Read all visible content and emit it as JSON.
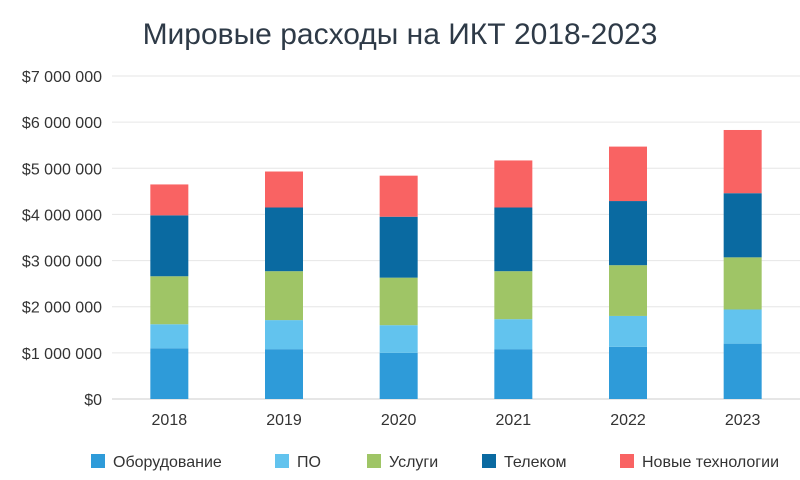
{
  "chart_data": {
    "type": "bar",
    "stacked": true,
    "title": "Мировые расходы на ИКТ 2018-2023",
    "xlabel": "",
    "ylabel": "",
    "categories": [
      "2018",
      "2019",
      "2020",
      "2021",
      "2022",
      "2023"
    ],
    "ylim": [
      0,
      7000000
    ],
    "yticks": [
      0,
      1000000,
      2000000,
      3000000,
      4000000,
      5000000,
      6000000,
      7000000
    ],
    "ytick_labels": [
      "$0",
      "$1 000 000",
      "$2 000 000",
      "$3 000 000",
      "$4 000 000",
      "$5 000 000",
      "$6 000 000",
      "$7 000 000"
    ],
    "grid": true,
    "legend_position": "bottom",
    "series": [
      {
        "name": "Оборудование",
        "color": "#2e9bd9",
        "values": [
          1100000,
          1080000,
          1000000,
          1080000,
          1130000,
          1200000
        ]
      },
      {
        "name": "ПО",
        "color": "#62c3ee",
        "values": [
          520000,
          630000,
          600000,
          650000,
          670000,
          740000
        ]
      },
      {
        "name": "Услуги",
        "color": "#9fc566",
        "values": [
          1040000,
          1060000,
          1030000,
          1040000,
          1100000,
          1130000
        ]
      },
      {
        "name": "Телеком",
        "color": "#0a6aa1",
        "values": [
          1320000,
          1380000,
          1320000,
          1380000,
          1390000,
          1390000
        ]
      },
      {
        "name": "Новые технологии",
        "color": "#f96363",
        "values": [
          670000,
          780000,
          890000,
          1020000,
          1180000,
          1370000
        ]
      }
    ]
  }
}
